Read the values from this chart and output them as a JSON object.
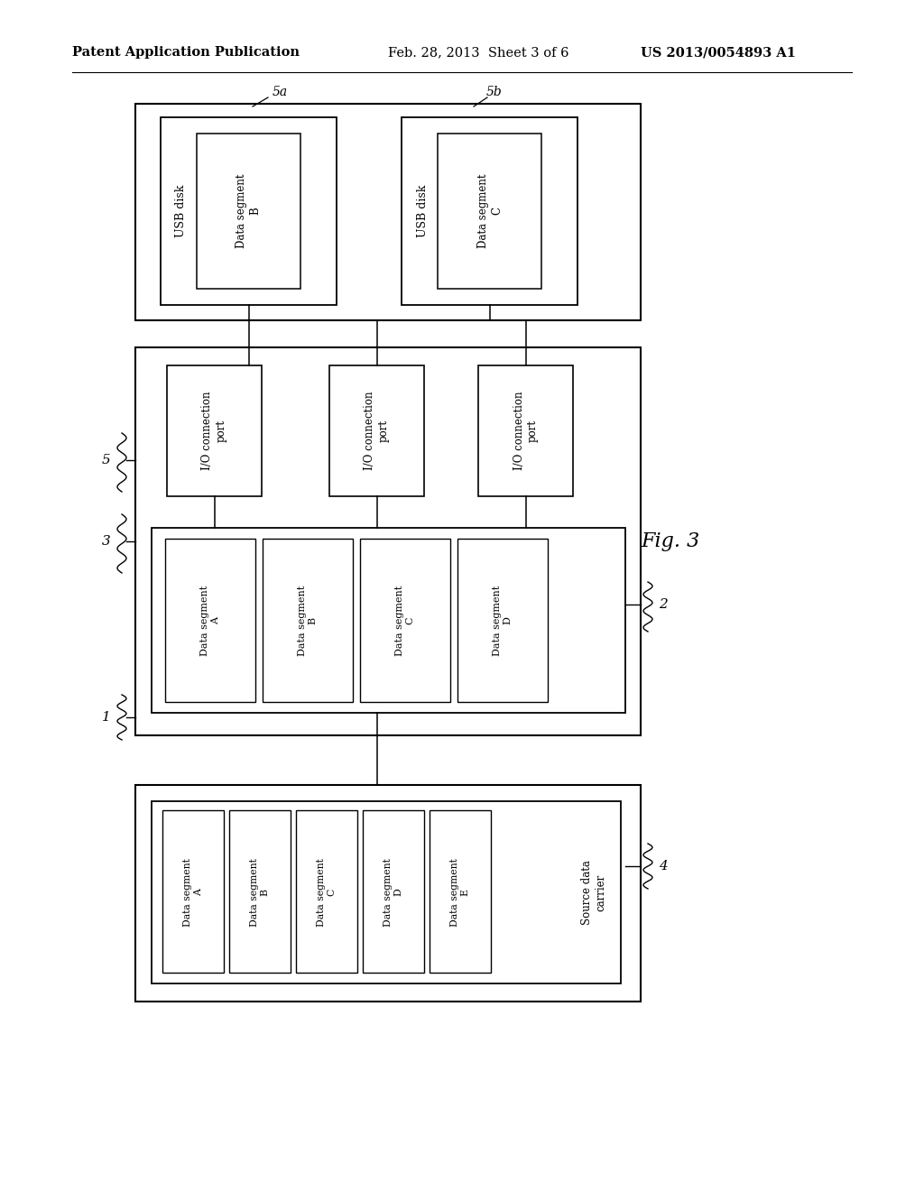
{
  "bg_color": "#ffffff",
  "header_text": "Patent Application Publication",
  "header_date": "Feb. 28, 2013  Sheet 3 of 6",
  "header_patent": "US 2013/0054893 A1",
  "fig_label": "Fig. 3"
}
